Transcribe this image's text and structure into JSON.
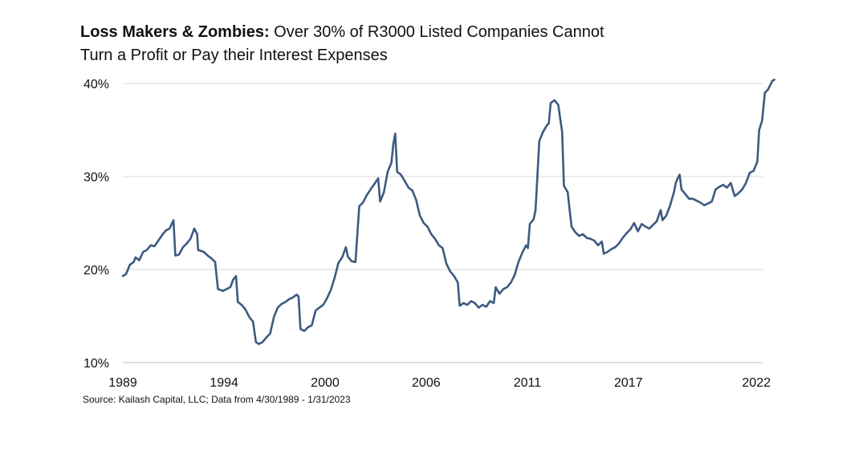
{
  "header": {
    "title_bold": "Loss Makers & Zombies:",
    "title_rest": " Over 30% of R3000 Listed Companies Cannot",
    "title_line2": "Turn a Profit or Pay their Interest Expenses"
  },
  "footer": {
    "source": "Source: Kailash Capital, LLC; Data from 4/30/1989 - 1/31/2023"
  },
  "colors": {
    "line": "#3d5a80",
    "grid": "#d9d9d9",
    "axis": "#bfbfbf"
  },
  "chart_data": {
    "type": "line",
    "title": "Loss Makers & Zombies: Over 30% of R3000 Listed Companies Cannot Turn a Profit or Pay their Interest Expenses",
    "xlabel": "",
    "ylabel": "",
    "xlim": [
      1989.33,
      2023.08
    ],
    "ylim": [
      10,
      40
    ],
    "grid": true,
    "legend": "none",
    "x_ticks": [
      {
        "value": 1989.33,
        "label": "1989"
      },
      {
        "value": 1994.67,
        "label": "1994"
      },
      {
        "value": 2000.0,
        "label": "2000"
      },
      {
        "value": 2005.33,
        "label": "2006"
      },
      {
        "value": 2010.67,
        "label": "2011"
      },
      {
        "value": 2016.0,
        "label": "2017"
      },
      {
        "value": 2022.75,
        "label": "2022"
      }
    ],
    "y_ticks": [
      {
        "value": 10,
        "label": "10%"
      },
      {
        "value": 20,
        "label": "20%"
      },
      {
        "value": 30,
        "label": "30%"
      },
      {
        "value": 40,
        "label": "40%"
      }
    ],
    "series": [
      {
        "points": [
          [
            1989.33,
            19.3
          ],
          [
            1989.5,
            19.5
          ],
          [
            1989.7,
            20.5
          ],
          [
            1989.9,
            20.8
          ],
          [
            1990.0,
            21.3
          ],
          [
            1990.2,
            21.0
          ],
          [
            1990.4,
            21.9
          ],
          [
            1990.6,
            22.1
          ],
          [
            1990.8,
            22.6
          ],
          [
            1991.0,
            22.5
          ],
          [
            1991.2,
            23.1
          ],
          [
            1991.4,
            23.7
          ],
          [
            1991.6,
            24.2
          ],
          [
            1991.8,
            24.4
          ],
          [
            1992.0,
            25.3
          ],
          [
            1992.1,
            21.5
          ],
          [
            1992.3,
            21.6
          ],
          [
            1992.5,
            22.4
          ],
          [
            1992.7,
            22.8
          ],
          [
            1992.9,
            23.3
          ],
          [
            1993.1,
            24.4
          ],
          [
            1993.25,
            23.8
          ],
          [
            1993.3,
            22.1
          ],
          [
            1993.6,
            21.9
          ],
          [
            1993.8,
            21.5
          ],
          [
            1994.0,
            21.2
          ],
          [
            1994.2,
            20.8
          ],
          [
            1994.35,
            17.9
          ],
          [
            1994.6,
            17.7
          ],
          [
            1994.8,
            17.9
          ],
          [
            1995.0,
            18.1
          ],
          [
            1995.15,
            18.9
          ],
          [
            1995.3,
            19.3
          ],
          [
            1995.4,
            16.5
          ],
          [
            1995.6,
            16.2
          ],
          [
            1995.8,
            15.7
          ],
          [
            1996.0,
            14.9
          ],
          [
            1996.2,
            14.4
          ],
          [
            1996.35,
            12.2
          ],
          [
            1996.5,
            12.0
          ],
          [
            1996.7,
            12.2
          ],
          [
            1996.9,
            12.7
          ],
          [
            1997.1,
            13.1
          ],
          [
            1997.3,
            14.9
          ],
          [
            1997.5,
            15.9
          ],
          [
            1997.7,
            16.3
          ],
          [
            1997.9,
            16.5
          ],
          [
            1998.1,
            16.8
          ],
          [
            1998.3,
            17.0
          ],
          [
            1998.5,
            17.3
          ],
          [
            1998.6,
            17.1
          ],
          [
            1998.7,
            13.6
          ],
          [
            1998.9,
            13.4
          ],
          [
            1999.1,
            13.8
          ],
          [
            1999.3,
            14.0
          ],
          [
            1999.5,
            15.6
          ],
          [
            1999.7,
            15.9
          ],
          [
            1999.9,
            16.2
          ],
          [
            2000.1,
            16.9
          ],
          [
            2000.3,
            17.8
          ],
          [
            2000.5,
            19.1
          ],
          [
            2000.7,
            20.7
          ],
          [
            2000.9,
            21.3
          ],
          [
            2001.1,
            22.4
          ],
          [
            2001.2,
            21.4
          ],
          [
            2001.4,
            20.9
          ],
          [
            2001.6,
            20.8
          ],
          [
            2001.8,
            26.8
          ],
          [
            2002.0,
            27.2
          ],
          [
            2002.2,
            28.0
          ],
          [
            2002.4,
            28.6
          ],
          [
            2002.6,
            29.2
          ],
          [
            2002.8,
            29.8
          ],
          [
            2002.9,
            27.3
          ],
          [
            2003.1,
            28.3
          ],
          [
            2003.3,
            30.5
          ],
          [
            2003.5,
            31.5
          ],
          [
            2003.6,
            33.5
          ],
          [
            2003.7,
            34.6
          ],
          [
            2003.8,
            30.5
          ],
          [
            2004.0,
            30.2
          ],
          [
            2004.2,
            29.5
          ],
          [
            2004.4,
            28.8
          ],
          [
            2004.6,
            28.5
          ],
          [
            2004.8,
            27.5
          ],
          [
            2005.0,
            25.8
          ],
          [
            2005.2,
            25.0
          ],
          [
            2005.4,
            24.6
          ],
          [
            2005.6,
            23.8
          ],
          [
            2005.8,
            23.3
          ],
          [
            2006.0,
            22.6
          ],
          [
            2006.2,
            22.3
          ],
          [
            2006.4,
            20.6
          ],
          [
            2006.6,
            19.8
          ],
          [
            2006.8,
            19.3
          ],
          [
            2007.0,
            18.6
          ],
          [
            2007.1,
            16.1
          ],
          [
            2007.3,
            16.4
          ],
          [
            2007.5,
            16.2
          ],
          [
            2007.7,
            16.6
          ],
          [
            2007.9,
            16.4
          ],
          [
            2008.1,
            15.9
          ],
          [
            2008.3,
            16.2
          ],
          [
            2008.5,
            16.0
          ],
          [
            2008.7,
            16.6
          ],
          [
            2008.9,
            16.4
          ],
          [
            2009.0,
            18.1
          ],
          [
            2009.2,
            17.4
          ],
          [
            2009.4,
            17.9
          ],
          [
            2009.6,
            18.1
          ],
          [
            2009.8,
            18.6
          ],
          [
            2010.0,
            19.4
          ],
          [
            2010.2,
            20.8
          ],
          [
            2010.4,
            21.8
          ],
          [
            2010.6,
            22.6
          ],
          [
            2010.7,
            22.3
          ],
          [
            2010.8,
            24.9
          ],
          [
            2011.0,
            25.4
          ],
          [
            2011.1,
            26.4
          ],
          [
            2011.3,
            33.8
          ],
          [
            2011.5,
            34.8
          ],
          [
            2011.7,
            35.5
          ],
          [
            2011.8,
            35.7
          ],
          [
            2011.9,
            37.9
          ],
          [
            2012.1,
            38.2
          ],
          [
            2012.3,
            37.7
          ],
          [
            2012.5,
            34.8
          ],
          [
            2012.6,
            29.0
          ],
          [
            2012.8,
            28.3
          ],
          [
            2012.9,
            26.4
          ],
          [
            2013.0,
            24.6
          ],
          [
            2013.2,
            24.0
          ],
          [
            2013.4,
            23.6
          ],
          [
            2013.6,
            23.8
          ],
          [
            2013.8,
            23.4
          ],
          [
            2014.0,
            23.3
          ],
          [
            2014.2,
            23.1
          ],
          [
            2014.4,
            22.6
          ],
          [
            2014.6,
            23.0
          ],
          [
            2014.7,
            21.7
          ],
          [
            2014.9,
            21.9
          ],
          [
            2015.1,
            22.2
          ],
          [
            2015.3,
            22.4
          ],
          [
            2015.5,
            22.8
          ],
          [
            2015.7,
            23.4
          ],
          [
            2015.9,
            23.9
          ],
          [
            2016.1,
            24.3
          ],
          [
            2016.3,
            25.0
          ],
          [
            2016.5,
            24.1
          ],
          [
            2016.7,
            24.9
          ],
          [
            2016.9,
            24.6
          ],
          [
            2017.1,
            24.4
          ],
          [
            2017.3,
            24.8
          ],
          [
            2017.5,
            25.2
          ],
          [
            2017.7,
            26.4
          ],
          [
            2017.8,
            25.3
          ],
          [
            2018.0,
            25.8
          ],
          [
            2018.2,
            26.9
          ],
          [
            2018.4,
            28.3
          ],
          [
            2018.5,
            29.3
          ],
          [
            2018.6,
            29.8
          ],
          [
            2018.7,
            30.2
          ],
          [
            2018.8,
            28.6
          ],
          [
            2019.0,
            28.1
          ],
          [
            2019.2,
            27.6
          ],
          [
            2019.4,
            27.6
          ],
          [
            2019.6,
            27.4
          ],
          [
            2019.8,
            27.2
          ],
          [
            2020.0,
            26.9
          ],
          [
            2020.2,
            27.1
          ],
          [
            2020.4,
            27.3
          ],
          [
            2020.6,
            28.6
          ],
          [
            2020.8,
            28.9
          ],
          [
            2021.0,
            29.1
          ],
          [
            2021.2,
            28.8
          ],
          [
            2021.4,
            29.3
          ],
          [
            2021.6,
            27.9
          ],
          [
            2021.8,
            28.2
          ],
          [
            2022.0,
            28.6
          ],
          [
            2022.2,
            29.3
          ],
          [
            2022.4,
            30.4
          ],
          [
            2022.6,
            30.6
          ],
          [
            2022.8,
            31.6
          ],
          [
            2022.9,
            35.0
          ],
          [
            2023.05,
            36.0
          ],
          [
            2023.2,
            39.0
          ],
          [
            2023.35,
            39.3
          ],
          [
            2023.5,
            39.9
          ],
          [
            2023.6,
            40.3
          ],
          [
            2023.7,
            40.4
          ]
        ]
      }
    ]
  }
}
